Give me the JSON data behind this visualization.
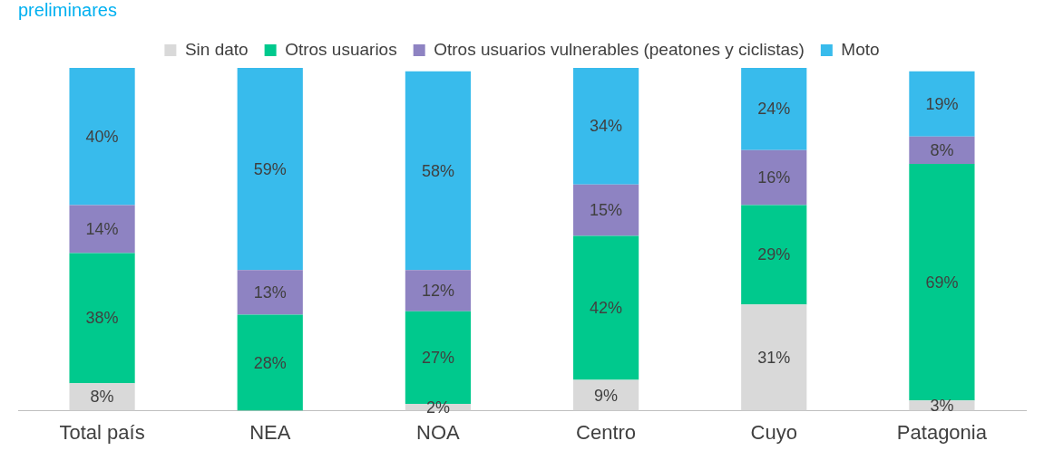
{
  "chart_data": {
    "type": "bar",
    "title": "preliminares",
    "stacked": true,
    "legend": "top",
    "tick_labels": "x",
    "grid": false,
    "ylim": [
      0,
      100
    ],
    "categories": [
      "Total país",
      "NEA",
      "NOA",
      "Centro",
      "Cuyo",
      "Patagonia"
    ],
    "series": [
      {
        "name": "Sin dato",
        "color": "#d9d9d9",
        "values": [
          8,
          0,
          2,
          9,
          31,
          3
        ],
        "value_labels": [
          "8%",
          null,
          "2%",
          "9%",
          "31%",
          "3%"
        ]
      },
      {
        "name": "Otros usuarios",
        "color": "#00c98d",
        "values": [
          38,
          28,
          27,
          42,
          29,
          69
        ],
        "value_labels": [
          "38%",
          "28%",
          "27%",
          "42%",
          "29%",
          "69%"
        ]
      },
      {
        "name": "Otros usuarios vulnerables (peatones y ciclistas)",
        "color": "#8e83c2",
        "values": [
          14,
          13,
          12,
          15,
          16,
          8
        ],
        "value_labels": [
          "14%",
          "13%",
          "12%",
          "15%",
          "16%",
          "8%"
        ]
      },
      {
        "name": "Moto",
        "color": "#38bbec",
        "values": [
          40,
          59,
          58,
          34,
          24,
          19
        ],
        "value_labels": [
          "40%",
          "59%",
          "58%",
          "34%",
          "24%",
          "19%"
        ]
      }
    ]
  }
}
